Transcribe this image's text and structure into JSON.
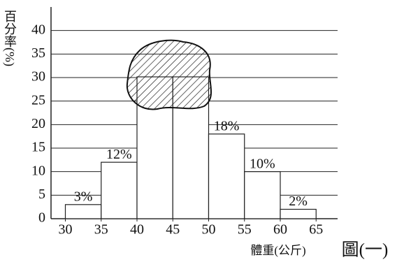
{
  "chart_data": {
    "type": "histogram",
    "y_label": "百分率(%)",
    "x_label": "體重(公斤)",
    "figure_label": "圖(一)",
    "bins": [
      30,
      35,
      40,
      45,
      50,
      55,
      60,
      65
    ],
    "values": [
      3,
      12,
      null,
      null,
      18,
      10,
      2
    ],
    "value_labels": [
      "3%",
      "12%",
      null,
      null,
      "18%",
      "10%",
      "2%"
    ],
    "color": "#ffffff",
    "xlim": [
      28,
      68
    ],
    "xticks": [
      30,
      35,
      40,
      45,
      50,
      55,
      60,
      65
    ],
    "ylim": [
      0,
      45
    ],
    "yticks": [
      0,
      5,
      10,
      15,
      20,
      25,
      30,
      35,
      40
    ],
    "grid": true
  }
}
